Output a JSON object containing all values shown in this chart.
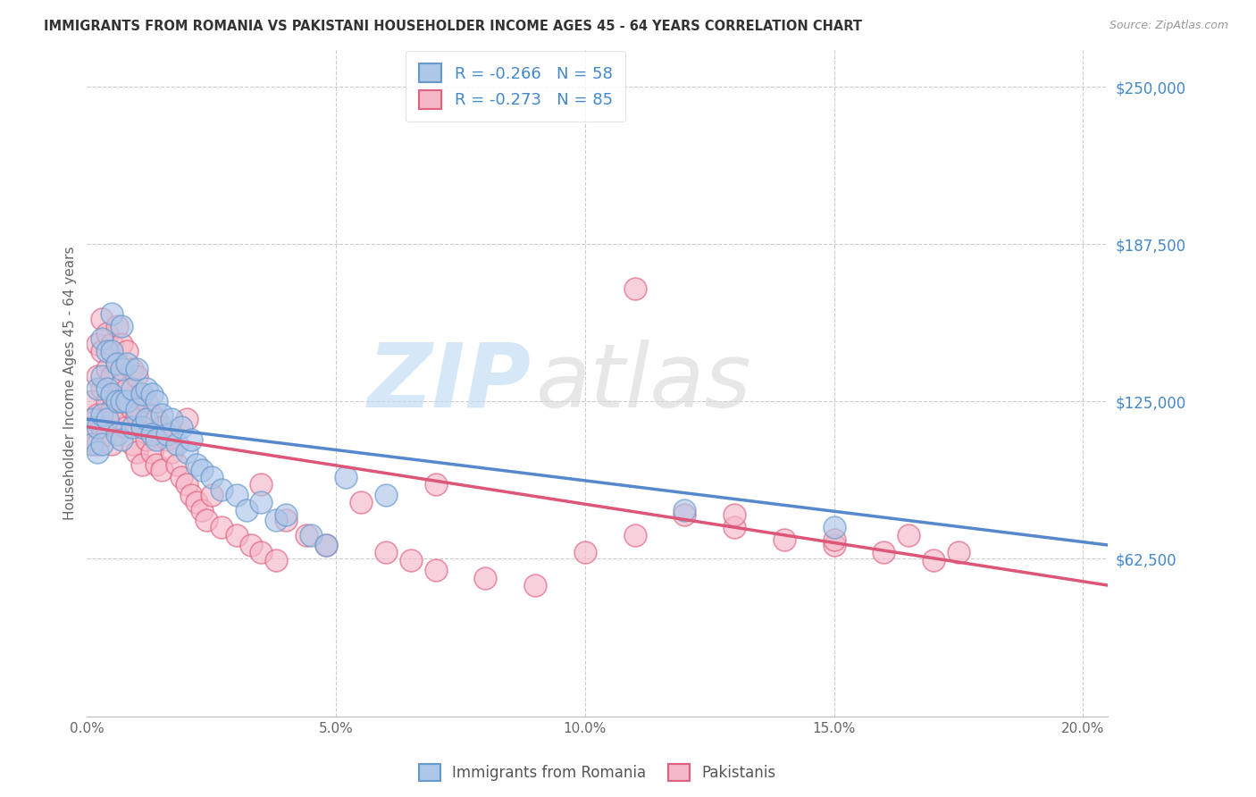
{
  "title": "IMMIGRANTS FROM ROMANIA VS PAKISTANI HOUSEHOLDER INCOME AGES 45 - 64 YEARS CORRELATION CHART",
  "source": "Source: ZipAtlas.com",
  "ylabel": "Householder Income Ages 45 - 64 years",
  "ytick_labels": [
    "$62,500",
    "$125,000",
    "$187,500",
    "$250,000"
  ],
  "ytick_values": [
    62500,
    125000,
    187500,
    250000
  ],
  "ylim": [
    0,
    265000
  ],
  "xlim": [
    0.0,
    0.205
  ],
  "romania_R": "-0.266",
  "romania_N": "58",
  "pakistan_R": "-0.273",
  "pakistan_N": "85",
  "romania_color": "#aec6e8",
  "pakistan_color": "#f5b8c8",
  "romania_edge": "#6699cc",
  "pakistan_edge": "#e06080",
  "line_romania": "#5588cc",
  "line_pakistan": "#dd5577",
  "legend_label_romania": "Immigrants from Romania",
  "legend_label_pakistan": "Pakistanis",
  "romania_x": [
    0.001,
    0.001,
    0.002,
    0.002,
    0.002,
    0.003,
    0.003,
    0.003,
    0.003,
    0.004,
    0.004,
    0.004,
    0.005,
    0.005,
    0.005,
    0.006,
    0.006,
    0.006,
    0.007,
    0.007,
    0.007,
    0.007,
    0.008,
    0.008,
    0.009,
    0.009,
    0.01,
    0.01,
    0.011,
    0.011,
    0.012,
    0.012,
    0.013,
    0.013,
    0.014,
    0.014,
    0.015,
    0.016,
    0.017,
    0.018,
    0.019,
    0.02,
    0.021,
    0.022,
    0.023,
    0.025,
    0.027,
    0.03,
    0.032,
    0.035,
    0.038,
    0.04,
    0.045,
    0.048,
    0.052,
    0.06,
    0.12,
    0.15
  ],
  "romania_y": [
    118000,
    108000,
    130000,
    115000,
    105000,
    150000,
    135000,
    120000,
    108000,
    145000,
    130000,
    118000,
    160000,
    145000,
    128000,
    140000,
    125000,
    112000,
    155000,
    138000,
    125000,
    110000,
    140000,
    125000,
    130000,
    115000,
    138000,
    122000,
    128000,
    115000,
    130000,
    118000,
    128000,
    112000,
    125000,
    110000,
    120000,
    112000,
    118000,
    108000,
    115000,
    105000,
    110000,
    100000,
    98000,
    95000,
    90000,
    88000,
    82000,
    85000,
    78000,
    80000,
    72000,
    68000,
    95000,
    88000,
    82000,
    75000
  ],
  "pakistan_x": [
    0.001,
    0.001,
    0.001,
    0.002,
    0.002,
    0.002,
    0.002,
    0.003,
    0.003,
    0.003,
    0.003,
    0.004,
    0.004,
    0.004,
    0.004,
    0.005,
    0.005,
    0.005,
    0.005,
    0.006,
    0.006,
    0.006,
    0.007,
    0.007,
    0.007,
    0.008,
    0.008,
    0.008,
    0.009,
    0.009,
    0.009,
    0.01,
    0.01,
    0.01,
    0.011,
    0.011,
    0.011,
    0.012,
    0.012,
    0.013,
    0.013,
    0.014,
    0.014,
    0.015,
    0.015,
    0.016,
    0.017,
    0.018,
    0.019,
    0.02,
    0.021,
    0.022,
    0.023,
    0.024,
    0.025,
    0.027,
    0.03,
    0.033,
    0.035,
    0.038,
    0.04,
    0.044,
    0.048,
    0.055,
    0.06,
    0.065,
    0.07,
    0.08,
    0.09,
    0.1,
    0.11,
    0.12,
    0.13,
    0.14,
    0.15,
    0.16,
    0.17,
    0.11,
    0.02,
    0.035,
    0.07,
    0.13,
    0.15,
    0.165,
    0.175
  ],
  "pakistan_y": [
    125000,
    115000,
    108000,
    148000,
    135000,
    120000,
    108000,
    158000,
    145000,
    130000,
    115000,
    152000,
    138000,
    125000,
    112000,
    148000,
    135000,
    122000,
    108000,
    155000,
    140000,
    125000,
    148000,
    132000,
    118000,
    145000,
    130000,
    115000,
    138000,
    122000,
    108000,
    135000,
    120000,
    105000,
    128000,
    115000,
    100000,
    125000,
    110000,
    120000,
    105000,
    118000,
    100000,
    115000,
    98000,
    110000,
    105000,
    100000,
    95000,
    92000,
    88000,
    85000,
    82000,
    78000,
    88000,
    75000,
    72000,
    68000,
    65000,
    62000,
    78000,
    72000,
    68000,
    85000,
    65000,
    62000,
    58000,
    55000,
    52000,
    65000,
    72000,
    80000,
    75000,
    70000,
    68000,
    65000,
    62000,
    170000,
    118000,
    92000,
    92000,
    80000,
    70000,
    72000,
    65000
  ]
}
